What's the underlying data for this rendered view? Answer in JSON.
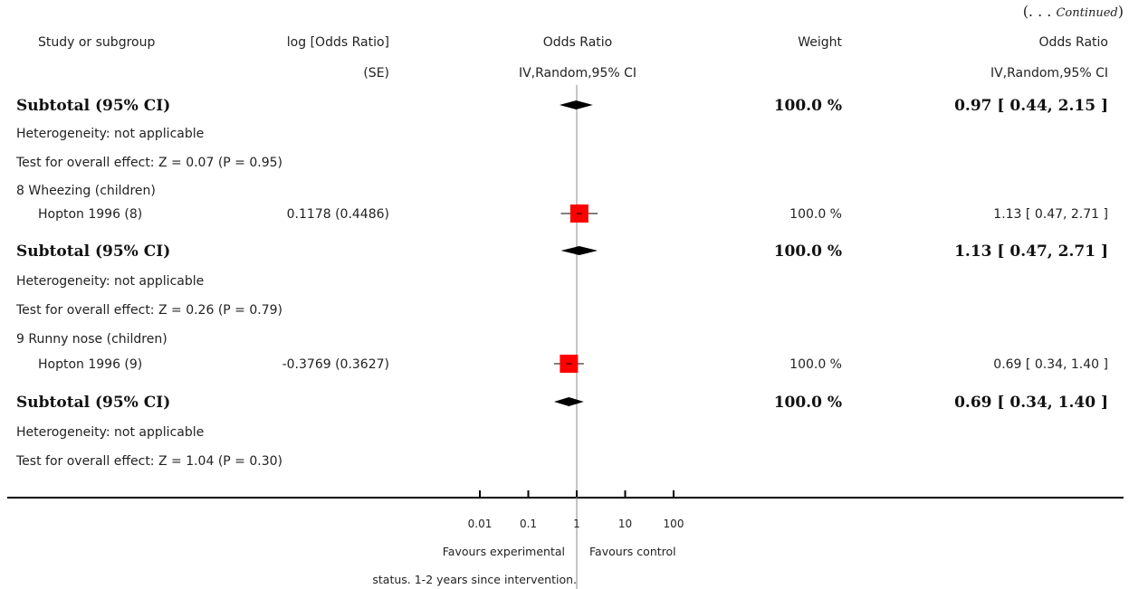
{
  "continued": {
    "open": "(. . .",
    "word": "Continued",
    "close": ")"
  },
  "header": {
    "study": "Study or subgroup",
    "logor_line1": "log [Odds Ratio]",
    "logor_line2": "(SE)",
    "or_line1": "Odds Ratio",
    "or_line2": "IV,Random,95% CI",
    "weight": "Weight",
    "or_right_line1": "Odds Ratio",
    "or_right_line2": "IV,Random,95% CI"
  },
  "rows": {
    "sub1": {
      "label": "Subtotal (95% CI)",
      "weight": "100.0 %",
      "ci": "0.97 [ 0.44, 2.15 ]"
    },
    "het1": "Heterogeneity: not applicable",
    "test1": "Test for overall effect: Z = 0.07 (P = 0.95)",
    "group8": "8 Wheezing (children)",
    "study8": {
      "name": "Hopton 1996 (8)",
      "logor": "0.1178 (0.4486)",
      "weight": "100.0 %",
      "ci": "1.13 [ 0.47, 2.71 ]"
    },
    "sub2": {
      "label": "Subtotal (95% CI)",
      "weight": "100.0 %",
      "ci": "1.13 [ 0.47, 2.71 ]"
    },
    "het2": "Heterogeneity: not applicable",
    "test2": "Test for overall effect: Z = 0.26 (P = 0.79)",
    "group9": "9 Runny nose (children)",
    "study9": {
      "name": "Hopton 1996 (9)",
      "logor": "-0.3769 (0.3627)",
      "weight": "100.0 %",
      "ci": "0.69 [ 0.34, 1.40 ]"
    },
    "sub3": {
      "label": "Subtotal (95% CI)",
      "weight": "100.0 %",
      "ci": "0.69 [ 0.34, 1.40 ]"
    },
    "het3": "Heterogeneity: not applicable",
    "test3": "Test for overall effect: Z = 1.04 (P = 0.30)"
  },
  "axis": {
    "favours_left": "Favours experimental",
    "favours_right": "Favours control"
  },
  "footnote": "status. 1-2 years since intervention.",
  "colors": {
    "study_marker": "#ff0000",
    "diamond": "#000000",
    "null_line": "#888888"
  },
  "chart_data": {
    "type": "scatter",
    "scale": "log",
    "xlim": [
      0.01,
      100
    ],
    "x_ticks": [
      0.01,
      0.1,
      1,
      10,
      100
    ],
    "x_tick_labels": [
      "0.01",
      "0.1",
      "1",
      "10",
      "100"
    ],
    "reference_line": 1,
    "studies": [
      {
        "name": "Hopton 1996 (8)",
        "or": 1.13,
        "ci": [
          0.47,
          2.71
        ],
        "weight": 100.0
      },
      {
        "name": "Hopton 1996 (9)",
        "or": 0.69,
        "ci": [
          0.34,
          1.4
        ],
        "weight": 100.0
      }
    ],
    "subtotals": [
      {
        "or": 0.97,
        "ci": [
          0.44,
          2.15
        ]
      },
      {
        "or": 1.13,
        "ci": [
          0.47,
          2.71
        ]
      },
      {
        "or": 0.69,
        "ci": [
          0.34,
          1.4
        ]
      }
    ]
  }
}
